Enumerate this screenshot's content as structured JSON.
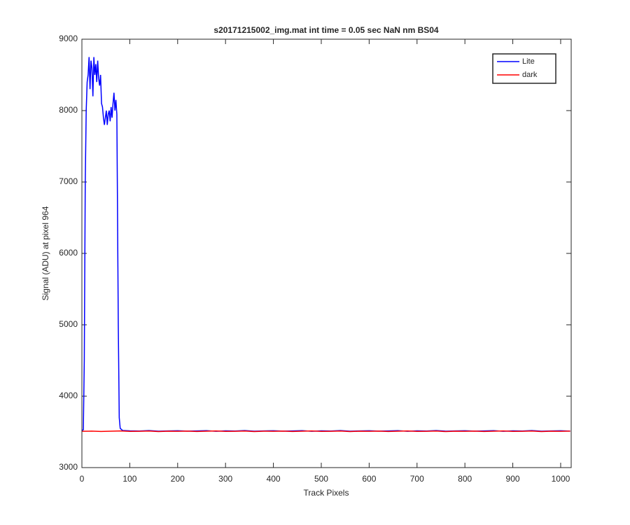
{
  "chart_data": {
    "type": "line",
    "title": "s20171215002_img.mat int time = 0.05 sec  NaN nm BS04",
    "x_label": "Track Pixels",
    "y_label": "Signal (ADU) at pixel 964",
    "xlim": [
      0,
      1022
    ],
    "ylim": [
      3000,
      9000
    ],
    "xticks": [
      0,
      100,
      200,
      300,
      400,
      500,
      600,
      700,
      800,
      900,
      1000
    ],
    "yticks": [
      3000,
      4000,
      5000,
      6000,
      7000,
      8000,
      9000
    ],
    "legend_position": "northeast",
    "series": [
      {
        "name": "Lite",
        "color": "#0000ff",
        "x": [
          0,
          3,
          5,
          7,
          9,
          11,
          13,
          15,
          17,
          19,
          21,
          23,
          25,
          27,
          29,
          31,
          33,
          35,
          37,
          39,
          41,
          43,
          45,
          47,
          49,
          51,
          53,
          55,
          57,
          59,
          61,
          63,
          65,
          67,
          69,
          71,
          73,
          74,
          76,
          78,
          80,
          85,
          100,
          120,
          140,
          160,
          180,
          200,
          220,
          240,
          260,
          280,
          300,
          320,
          340,
          360,
          380,
          400,
          420,
          440,
          460,
          480,
          500,
          520,
          540,
          560,
          580,
          600,
          620,
          640,
          660,
          680,
          700,
          720,
          740,
          760,
          780,
          800,
          820,
          840,
          860,
          880,
          900,
          920,
          940,
          960,
          980,
          1000,
          1020
        ],
        "values": [
          3520,
          3530,
          4500,
          7000,
          8000,
          8400,
          8500,
          8750,
          8300,
          8700,
          8600,
          8200,
          8750,
          8500,
          8650,
          8400,
          8700,
          8450,
          8350,
          8500,
          8100,
          8050,
          7900,
          7800,
          7900,
          8000,
          7800,
          7950,
          8000,
          7850,
          8050,
          7900,
          8100,
          8250,
          8000,
          8150,
          7950,
          7000,
          5000,
          3700,
          3550,
          3520,
          3515,
          3512,
          3518,
          3510,
          3514,
          3516,
          3511,
          3513,
          3517,
          3509,
          3515,
          3512,
          3518,
          3510,
          3514,
          3516,
          3511,
          3513,
          3517,
          3509,
          3515,
          3512,
          3518,
          3510,
          3514,
          3516,
          3511,
          3513,
          3517,
          3509,
          3515,
          3512,
          3518,
          3510,
          3514,
          3516,
          3511,
          3513,
          3517,
          3509,
          3515,
          3512,
          3518,
          3510,
          3514,
          3516,
          3511
        ]
      },
      {
        "name": "dark",
        "color": "#ff0000",
        "x": [
          0,
          20,
          40,
          60,
          80,
          100,
          120,
          140,
          160,
          180,
          200,
          220,
          240,
          260,
          280,
          300,
          320,
          340,
          360,
          380,
          400,
          420,
          440,
          460,
          480,
          500,
          520,
          540,
          560,
          580,
          600,
          620,
          640,
          660,
          680,
          700,
          720,
          740,
          760,
          780,
          800,
          820,
          840,
          860,
          880,
          900,
          920,
          940,
          960,
          980,
          1000,
          1020
        ],
        "values": [
          3508,
          3511,
          3506,
          3510,
          3513,
          3507,
          3509,
          3512,
          3505,
          3510,
          3508,
          3511,
          3506,
          3510,
          3513,
          3507,
          3509,
          3512,
          3505,
          3510,
          3508,
          3511,
          3506,
          3510,
          3513,
          3507,
          3509,
          3512,
          3505,
          3510,
          3508,
          3511,
          3506,
          3510,
          3513,
          3507,
          3509,
          3512,
          3505,
          3510,
          3508,
          3511,
          3506,
          3510,
          3513,
          3507,
          3509,
          3512,
          3505,
          3510,
          3508,
          3511
        ]
      }
    ]
  }
}
